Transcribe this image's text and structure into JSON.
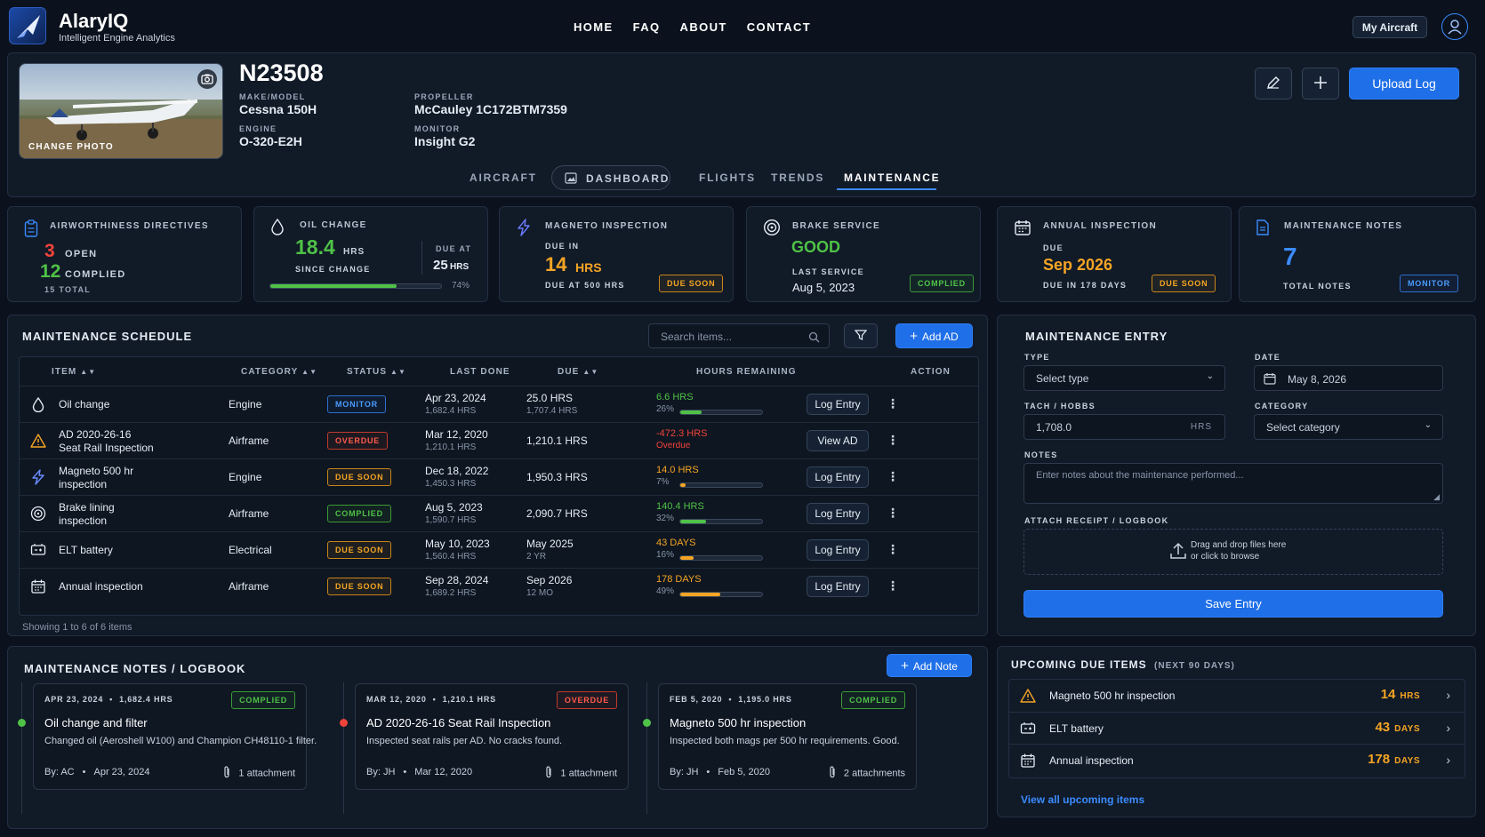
{
  "brand": {
    "name": "AlaryIQ",
    "tagline": "Intelligent Engine Analytics"
  },
  "nav": {
    "items": [
      "HOME",
      "FAQ",
      "ABOUT",
      "CONTACT"
    ],
    "my_aircraft": "My Aircraft"
  },
  "aircraft": {
    "change_photo": "CHANGE PHOTO",
    "tail": "N23508",
    "make_model_label": "MAKE/MODEL",
    "make_model": "Cessna 150H",
    "engine_label": "ENGINE",
    "engine": "O-320-E2H",
    "propeller_label": "PROPELLER",
    "propeller": "McCauley 1C172BTM7359",
    "monitor_label": "MONITOR",
    "monitor": "Insight G2",
    "upload_label": "Upload Log"
  },
  "tabs": [
    "AIRCRAFT",
    "DASHBOARD",
    "FLIGHTS",
    "TRENDS",
    "MAINTENANCE"
  ],
  "summary": {
    "ad": {
      "title": "AIRWORTHINESS DIRECTIVES",
      "open_count": "3",
      "open_label": "OPEN",
      "complied_count": "12",
      "complied_label": "COMPLIED",
      "total": "15 TOTAL"
    },
    "oil": {
      "title": "OIL CHANGE",
      "value": "18.4",
      "unit": "HRS",
      "since": "SINCE CHANGE",
      "due_at_label": "DUE AT",
      "due_value": "25",
      "due_unit": "HRS",
      "percent_text": "74%",
      "progress": 0.74
    },
    "magneto": {
      "title": "MAGNETO INSPECTION",
      "due_in_label": "DUE IN",
      "value": "14",
      "unit": "HRS",
      "due_at": "DUE AT 500 HRS",
      "badge": "DUE SOON"
    },
    "brake": {
      "title": "BRAKE SERVICE",
      "status": "GOOD",
      "last_label": "LAST SERVICE",
      "last_date": "Aug 5, 2023",
      "badge": "COMPLIED"
    },
    "annual": {
      "title": "ANNUAL INSPECTION",
      "due_label": "DUE",
      "date": "Sep 2026",
      "due_in": "DUE IN 178 DAYS",
      "badge": "DUE SOON"
    },
    "notes": {
      "title": "MAINTENANCE NOTES",
      "count": "7",
      "total_label": "TOTAL NOTES",
      "badge": "MONITOR"
    }
  },
  "schedule": {
    "title": "MAINTENANCE SCHEDULE",
    "search_placeholder": "Search items...",
    "add_ad": "Add AD",
    "columns": [
      "ITEM",
      "CATEGORY",
      "STATUS",
      "LAST DONE",
      "DUE",
      "HOURS REMAINING",
      "ACTION"
    ],
    "rows": [
      {
        "icon": "drop-icon",
        "item": "Oil change",
        "category": "Engine",
        "status": "MONITOR",
        "status_class": "b-mon",
        "last": "Apr 23, 2024",
        "last_sub": "1,682.4 HRS",
        "due": "25.0 HRS",
        "due_sub": "1,707.4 HRS",
        "remaining": "6.6 HRS",
        "remaining_sub": "26%",
        "progress": 0.26,
        "color": "#4fc247",
        "action": "Log Entry"
      },
      {
        "icon": "warning-icon",
        "item": "AD 2020-26-16\nSeat Rail Inspection",
        "category": "Airframe",
        "status": "OVERDUE",
        "status_class": "b-over",
        "last": "Mar 12, 2020",
        "last_sub": "1,210.1 HRS",
        "due": "1,210.1 HRS",
        "due_sub": "",
        "remaining": "-472.3 HRS",
        "remaining_sub": "Overdue",
        "progress": null,
        "color": "#f0443a",
        "action": "View AD"
      },
      {
        "icon": "bolt-icon",
        "item": "Magneto 500 hr\ninspection",
        "category": "Engine",
        "status": "DUE SOON",
        "status_class": "b-soon",
        "last": "Dec 18, 2022",
        "last_sub": "1,450.3 HRS",
        "due": "1,950.3 HRS",
        "due_sub": "",
        "remaining": "14.0 HRS",
        "remaining_sub": "7%",
        "progress": 0.07,
        "color": "#f5a524",
        "action": "Log Entry"
      },
      {
        "icon": "brake-icon",
        "item": "Brake lining\ninspection",
        "category": "Airframe",
        "status": "COMPLIED",
        "status_class": "b-comp",
        "last": "Aug 5, 2023",
        "last_sub": "1,590.7 HRS",
        "due": "2,090.7 HRS",
        "due_sub": "",
        "remaining": "140.4 HRS",
        "remaining_sub": "32%",
        "progress": 0.32,
        "color": "#4fc247",
        "action": "Log Entry"
      },
      {
        "icon": "battery-icon",
        "item": "ELT battery",
        "category": "Electrical",
        "status": "DUE SOON",
        "status_class": "b-soon",
        "last": "May 10, 2023",
        "last_sub": "1,560.4 HRS",
        "due": "May 2025",
        "due_sub": "2 YR",
        "remaining": "43 DAYS",
        "remaining_sub": "16%",
        "progress": 0.16,
        "color": "#f5a524",
        "action": "Log Entry"
      },
      {
        "icon": "calendar-icon",
        "item": "Annual inspection",
        "category": "Airframe",
        "status": "DUE SOON",
        "status_class": "b-soon",
        "last": "Sep 28, 2024",
        "last_sub": "1,689.2 HRS",
        "due": "Sep 2026",
        "due_sub": "12 MO",
        "remaining": "178 DAYS",
        "remaining_sub": "49%",
        "progress": 0.49,
        "color": "#f5a524",
        "action": "Log Entry"
      }
    ],
    "footer": "Showing 1 to 6 of 6 items"
  },
  "entry": {
    "title": "MAINTENANCE ENTRY",
    "type_label": "TYPE",
    "type_value": "Select type",
    "date_label": "DATE",
    "date_value": "May 8, 2026",
    "tach_label": "TACH / HOBBS",
    "tach_value": "1,708.0",
    "tach_unit": "HRS",
    "category_label": "CATEGORY",
    "category_value": "Select category",
    "notes_label": "NOTES",
    "notes_placeholder": "Enter notes about the maintenance performed...",
    "attach_label": "ATTACH RECEIPT / LOGBOOK",
    "drop_line1": "Drag and drop files here",
    "drop_line2": "or click to browse",
    "save": "Save Entry"
  },
  "notes": {
    "title": "MAINTENANCE NOTES / LOGBOOK",
    "add": "Add Note",
    "cards": [
      {
        "date": "APR 23, 2024",
        "hrs": "1,682.4 HRS",
        "badge": "COMPLIED",
        "badge_class": "b-comp",
        "dot": "#4fc247",
        "title": "Oil change and filter",
        "body": "Changed oil (Aeroshell W100) and Champion CH48110-1 filter.",
        "by": "By: AC",
        "foot_date": "Apr 23, 2024",
        "attach": "1 attachment"
      },
      {
        "date": "MAR 12, 2020",
        "hrs": "1,210.1 HRS",
        "badge": "OVERDUE",
        "badge_class": "b-over",
        "dot": "#f0443a",
        "title": "AD 2020-26-16 Seat Rail Inspection",
        "body": "Inspected seat rails per AD. No cracks found.",
        "by": "By: JH",
        "foot_date": "Mar 12, 2020",
        "attach": "1 attachment"
      },
      {
        "date": "FEB 5, 2020",
        "hrs": "1,195.0 HRS",
        "badge": "COMPLIED",
        "badge_class": "b-comp",
        "dot": "#4fc247",
        "title": "Magneto 500 hr inspection",
        "body": "Inspected both mags per 500 hr requirements. Good.",
        "by": "By: JH",
        "foot_date": "Feb 5, 2020",
        "attach": "2 attachments"
      }
    ]
  },
  "upcoming": {
    "title": "UPCOMING DUE ITEMS",
    "subtitle": "(NEXT 90 DAYS)",
    "items": [
      {
        "icon": "warning-icon",
        "label": "Magneto 500 hr inspection",
        "value": "14",
        "unit": "HRS"
      },
      {
        "icon": "battery-icon",
        "label": "ELT battery",
        "value": "43",
        "unit": "DAYS"
      },
      {
        "icon": "calendar-icon",
        "label": "Annual inspection",
        "value": "178",
        "unit": "DAYS"
      }
    ],
    "view_all": "View all upcoming items"
  },
  "colors": {
    "accent": "#1f6fe8",
    "green": "#4fc247",
    "red": "#f0443a",
    "orange": "#f5a524",
    "bg": "#0b121d",
    "panel": "#111a27"
  }
}
